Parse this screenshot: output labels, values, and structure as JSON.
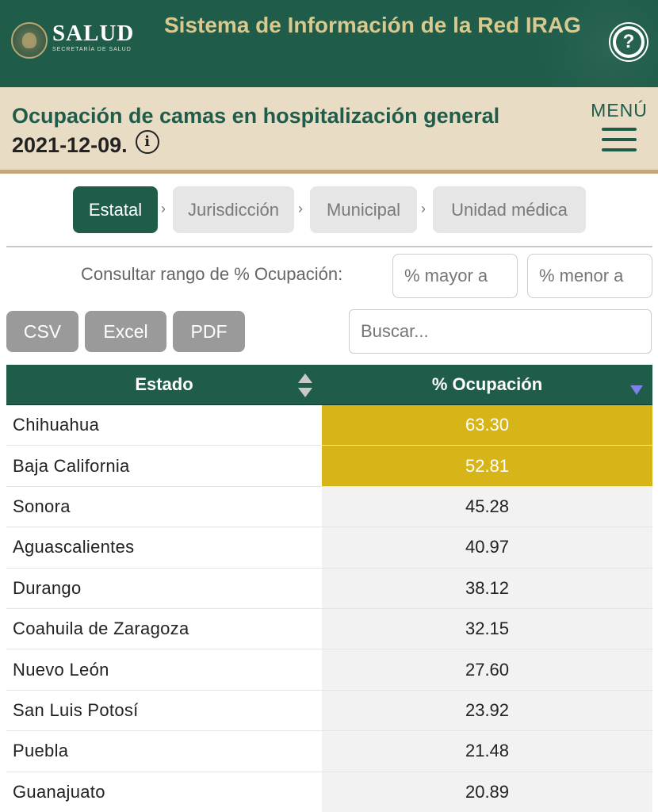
{
  "header": {
    "brand": "SALUD",
    "brand_sub": "SECRETARÍA DE SALUD",
    "system_title": "Sistema de Información de la Red IRAG",
    "help_icon": "?"
  },
  "subheader": {
    "title": "Ocupación de camas en hospitalización general",
    "date": "2021-12-09.",
    "info_icon": "i",
    "menu_label": "MENÚ"
  },
  "tabs": [
    {
      "label": "Estatal",
      "active": true
    },
    {
      "label": "Jurisdicción",
      "active": false
    },
    {
      "label": "Municipal",
      "active": false
    },
    {
      "label": "Unidad médica",
      "active": false
    }
  ],
  "tab_separator": "›",
  "range_filter": {
    "label": "Consultar rango de % Ocupación:",
    "min_placeholder": "% mayor a",
    "max_placeholder": "% menor a"
  },
  "export_buttons": [
    "CSV",
    "Excel",
    "PDF"
  ],
  "search": {
    "placeholder": "Buscar..."
  },
  "table": {
    "columns": [
      "Estado",
      "% Ocupación"
    ],
    "rows": [
      {
        "estado": "Chihuahua",
        "ocupacion": "63.30",
        "highlight": true
      },
      {
        "estado": "Baja California",
        "ocupacion": "52.81",
        "highlight": true
      },
      {
        "estado": "Sonora",
        "ocupacion": "45.28",
        "highlight": false
      },
      {
        "estado": "Aguascalientes",
        "ocupacion": "40.97",
        "highlight": false
      },
      {
        "estado": "Durango",
        "ocupacion": "38.12",
        "highlight": false
      },
      {
        "estado": "Coahuila de Zaragoza",
        "ocupacion": "32.15",
        "highlight": false
      },
      {
        "estado": "Nuevo León",
        "ocupacion": "27.60",
        "highlight": false
      },
      {
        "estado": "San Luis Potosí",
        "ocupacion": "23.92",
        "highlight": false
      },
      {
        "estado": "Puebla",
        "ocupacion": "21.48",
        "highlight": false
      },
      {
        "estado": "Guanajuato",
        "ocupacion": "20.89",
        "highlight": false
      }
    ]
  },
  "colors": {
    "primary": "#1f5c4a",
    "accent_gold": "#d8c98f",
    "subheader_bg": "#e8dcc5",
    "highlight": "#d7b417"
  }
}
